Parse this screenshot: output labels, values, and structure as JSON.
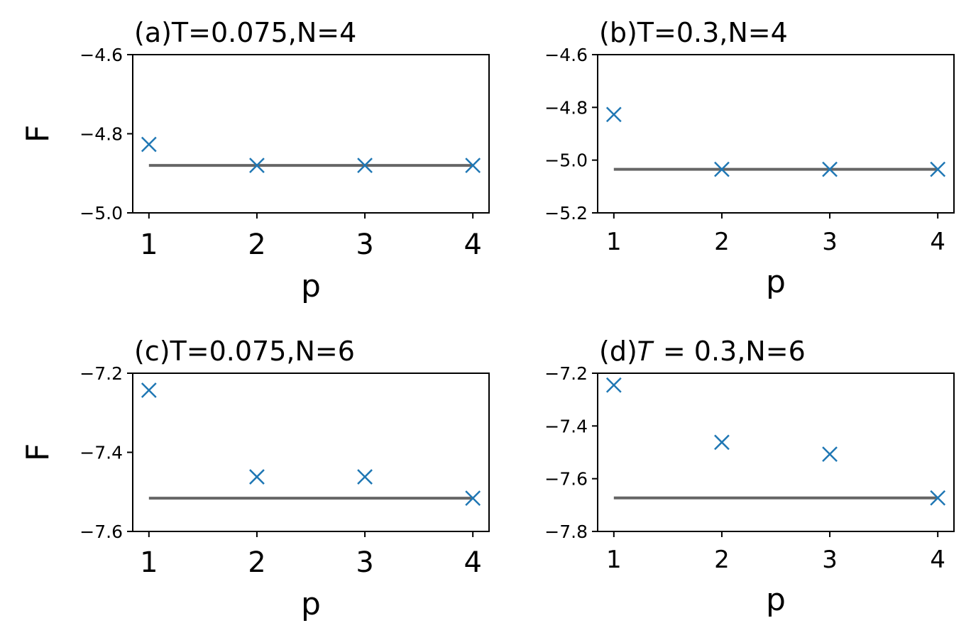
{
  "colors": {
    "marker": "#1f77b4",
    "reference_line": "#666666",
    "axes": "#000000"
  },
  "chart_data": [
    {
      "type": "scatter",
      "title": "(a)T=0.075,N=4",
      "xlabel": "p",
      "ylabel": "F",
      "x": [
        1,
        2,
        3,
        4
      ],
      "xticks": [
        "1",
        "2",
        "3",
        "4"
      ],
      "xlim": [
        0.85,
        4.15
      ],
      "yticks": [
        "−4.6",
        "−4.8",
        "−5.0"
      ],
      "ytick_values": [
        -4.6,
        -4.8,
        -5.0
      ],
      "ylim": [
        -5.0,
        -4.6
      ],
      "series": [
        {
          "marker": "x",
          "values": [
            -4.827,
            -4.88,
            -4.88,
            -4.88
          ]
        },
        {
          "style": "horizontal-line",
          "values": [
            -4.88,
            -4.88
          ]
        }
      ],
      "grid": false
    },
    {
      "type": "scatter",
      "title": "(b)T=0.3,N=4",
      "xlabel": "p",
      "ylabel": "",
      "x": [
        1,
        2,
        3,
        4
      ],
      "xticks": [
        "1",
        "2",
        "3",
        "4"
      ],
      "xlim": [
        0.85,
        4.15
      ],
      "yticks": [
        "−4.6",
        "−4.8",
        "−5.0",
        "−5.2"
      ],
      "ytick_values": [
        -4.6,
        -4.8,
        -5.0,
        -5.2
      ],
      "ylim": [
        -5.2,
        -4.6
      ],
      "series": [
        {
          "marker": "x",
          "values": [
            -4.827,
            -5.035,
            -5.035,
            -5.035
          ]
        },
        {
          "style": "horizontal-line",
          "values": [
            -5.035,
            -5.035
          ]
        }
      ],
      "grid": false
    },
    {
      "type": "scatter",
      "title": "(c)T=0.075,N=6",
      "xlabel": "p",
      "ylabel": "F",
      "x": [
        1,
        2,
        3,
        4
      ],
      "xticks": [
        "1",
        "2",
        "3",
        "4"
      ],
      "xlim": [
        0.85,
        4.15
      ],
      "yticks": [
        "−7.2",
        "−7.4",
        "−7.6"
      ],
      "ytick_values": [
        -7.2,
        -7.4,
        -7.6
      ],
      "ylim": [
        -7.6,
        -7.2
      ],
      "series": [
        {
          "marker": "x",
          "values": [
            -7.243,
            -7.462,
            -7.462,
            -7.516
          ]
        },
        {
          "style": "horizontal-line",
          "values": [
            -7.516,
            -7.516
          ]
        }
      ],
      "grid": false
    },
    {
      "type": "scatter",
      "title": "(d)𝑇 = 0.3,N=6",
      "xlabel": "p",
      "ylabel": "",
      "x": [
        1,
        2,
        3,
        4
      ],
      "xticks": [
        "1",
        "2",
        "3",
        "4"
      ],
      "xlim": [
        0.85,
        4.15
      ],
      "yticks": [
        "−7.2",
        "−7.4",
        "−7.6",
        "−7.8"
      ],
      "ytick_values": [
        -7.2,
        -7.4,
        -7.6,
        -7.8
      ],
      "ylim": [
        -7.8,
        -7.2
      ],
      "series": [
        {
          "marker": "x",
          "values": [
            -7.245,
            -7.462,
            -7.507,
            -7.673
          ]
        },
        {
          "style": "horizontal-line",
          "values": [
            -7.673,
            -7.673
          ]
        }
      ],
      "grid": false
    }
  ]
}
